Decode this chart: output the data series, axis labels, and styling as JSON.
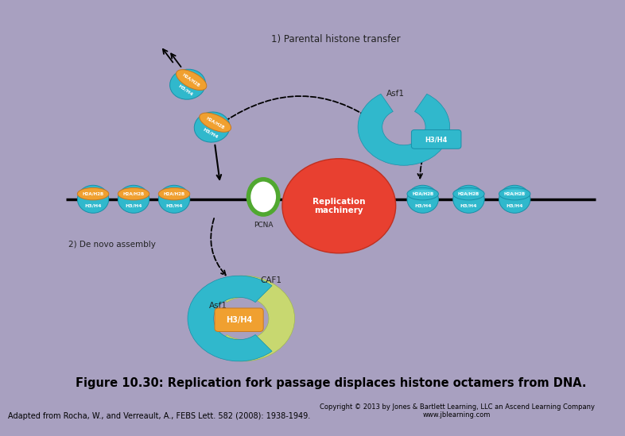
{
  "bg_color": "#a8a0c0",
  "panel_color": "#ffffff",
  "title_text": "Figure 10.30: Replication fork passage displaces histone octamers from DNA.",
  "copyright_text": "Copyright © 2013 by Jones & Bartlett Learning, LLC an Ascend Learning Company\nwww.jblearning.com",
  "adapted_text": "Adapted from Rocha, W., and Verreault, A., FEBS Lett. 582 (2008): 1938-1949.",
  "label_parental": "1) Parental histone transfer",
  "label_denovo": "2) De novo assembly",
  "label_replication": "Replication\nmachinery",
  "label_pcna": "PCNA",
  "label_caf1": "CAF1",
  "label_asf1": "Asf1",
  "color_orange": "#f0a030",
  "color_orange_edge": "#c87820",
  "color_teal": "#30b8cc",
  "color_teal_edge": "#1890a8",
  "color_red": "#e84030",
  "color_green_ring": "#50a830",
  "color_lightgreen": "#c8d870",
  "color_dark": "#222222",
  "color_white": "#ffffff",
  "color_black": "#000000",
  "color_gray": "#888888"
}
